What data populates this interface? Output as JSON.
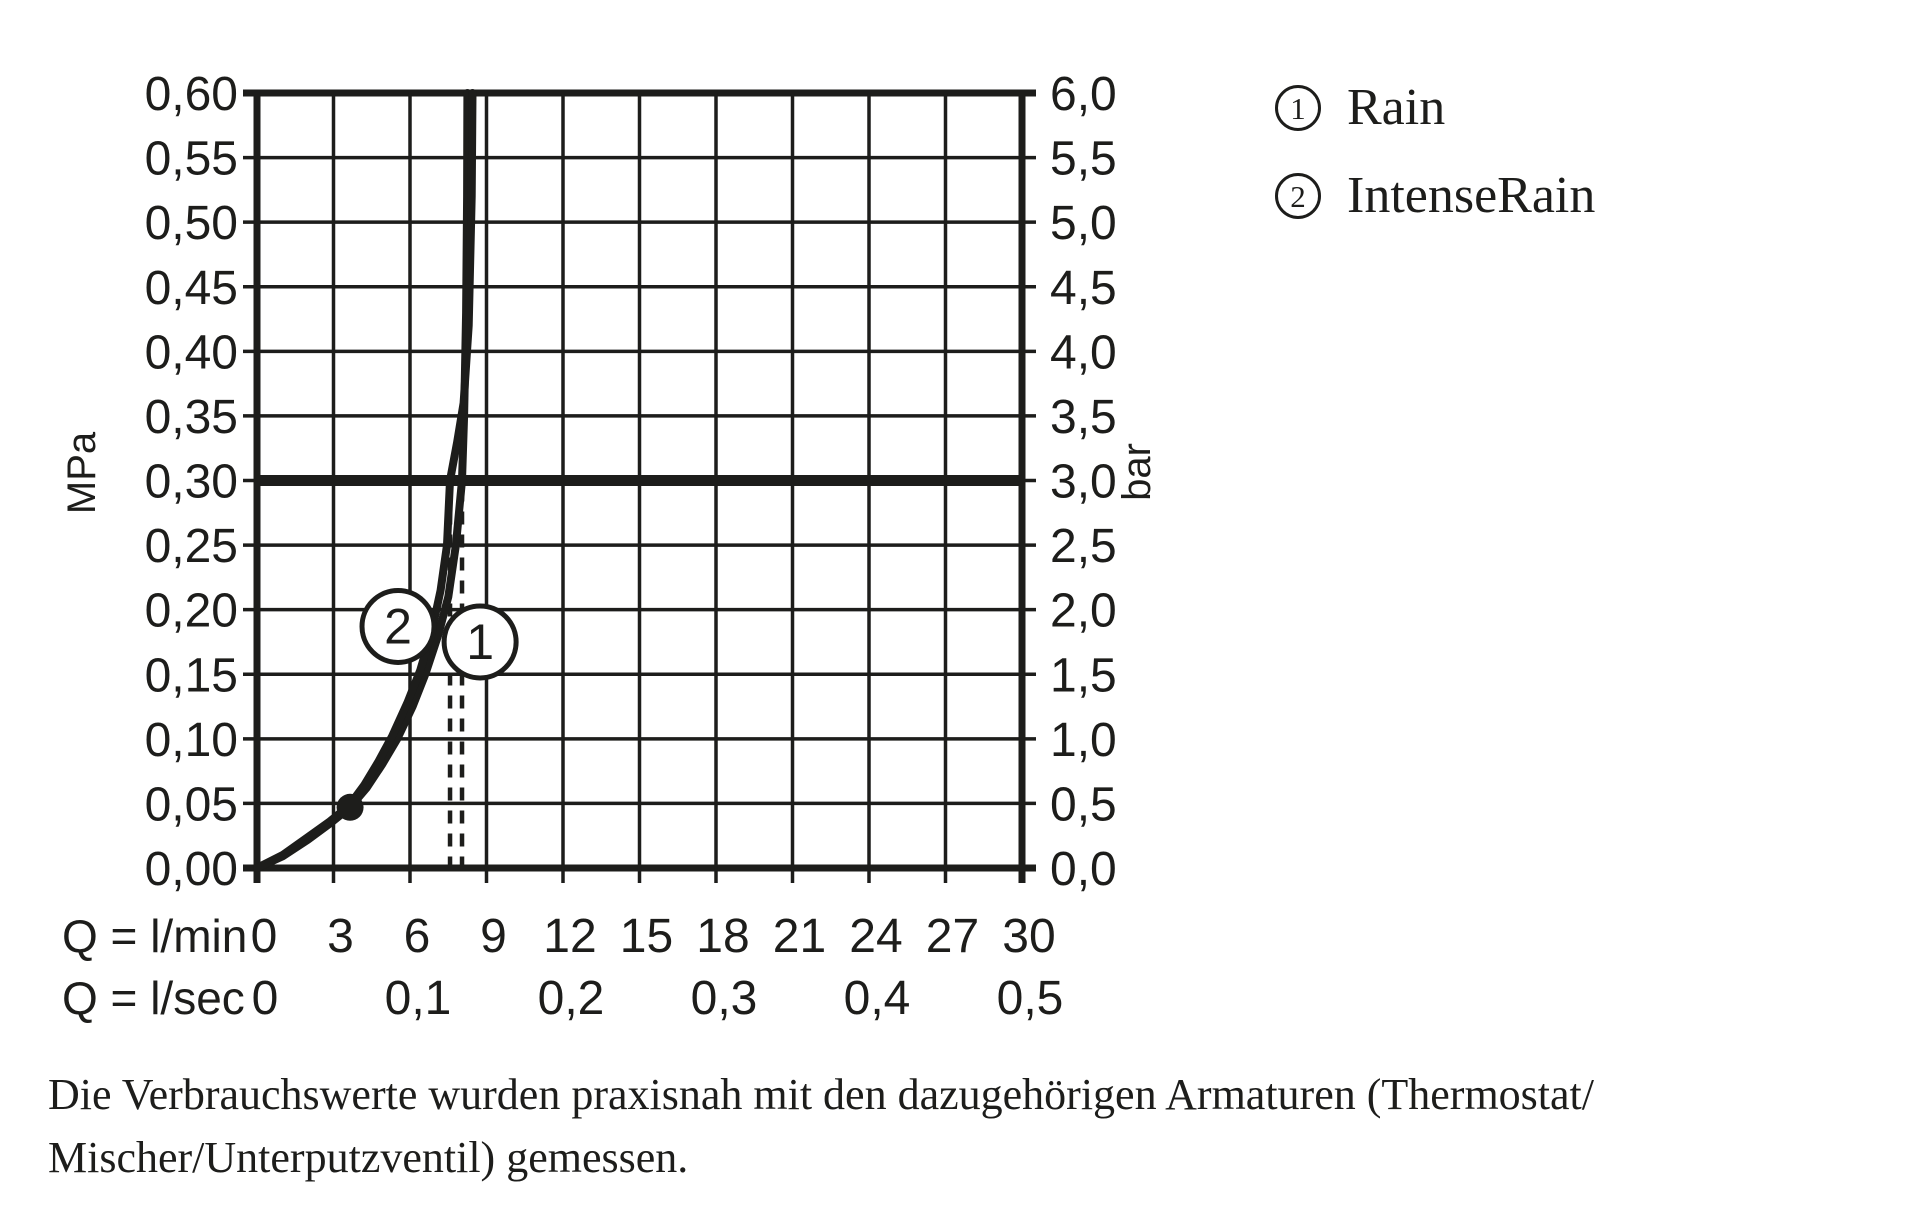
{
  "figure": {
    "background": "#ffffff",
    "line_color": "#1d1d1b"
  },
  "chart_data": {
    "type": "line",
    "title": "",
    "x_axis": {
      "primary_label": "Q = l/min",
      "secondary_label": "Q = l/sec",
      "min": 0,
      "max": 30,
      "step": 3,
      "primary_tick_labels": [
        "0",
        "3",
        "6",
        "9",
        "12",
        "15",
        "18",
        "21",
        "24",
        "27",
        "30"
      ],
      "secondary_ticks": [
        {
          "q": 0,
          "label": "0"
        },
        {
          "q": 6,
          "label": "0,1"
        },
        {
          "q": 12,
          "label": "0,2"
        },
        {
          "q": 18,
          "label": "0,3"
        },
        {
          "q": 24,
          "label": "0,4"
        },
        {
          "q": 30,
          "label": "0,5"
        }
      ]
    },
    "y_axis_left": {
      "label": "MPa",
      "min": 0,
      "max": 0.6,
      "step": 0.05,
      "tick_labels": [
        "0,60",
        "0,55",
        "0,50",
        "0,45",
        "0,40",
        "0,35",
        "0,30",
        "0,25",
        "0,20",
        "0,15",
        "0,10",
        "0,05",
        "0,00"
      ]
    },
    "y_axis_right": {
      "label": "bar",
      "min": 0,
      "max": 6,
      "step": 0.5,
      "tick_labels": [
        "6,0",
        "5,5",
        "5,0",
        "4,5",
        "4,0",
        "3,5",
        "3,0",
        "2,5",
        "2,0",
        "1,5",
        "1,0",
        "0,5",
        "0,0"
      ]
    },
    "grid": true,
    "reference_pressure_mpa": 0.3,
    "measured_point": {
      "q_lmin": 3.65,
      "p_mpa": 0.047
    },
    "series": [
      {
        "number": "1",
        "name": "Rain",
        "q_at_3bar_lmin": 8.04,
        "label_circle": {
          "q_lmin": 8.75,
          "p_mpa": 0.175
        },
        "points": [
          [
            0,
            0
          ],
          [
            1,
            0.009
          ],
          [
            2,
            0.022
          ],
          [
            2.9,
            0.035
          ],
          [
            3.65,
            0.047
          ],
          [
            4.3,
            0.062
          ],
          [
            4.9,
            0.08
          ],
          [
            5.5,
            0.1
          ],
          [
            6.1,
            0.125
          ],
          [
            6.6,
            0.15
          ],
          [
            7.1,
            0.18
          ],
          [
            7.5,
            0.21
          ],
          [
            7.8,
            0.25
          ],
          [
            8.04,
            0.3
          ],
          [
            8.12,
            0.35
          ],
          [
            8.2,
            0.43
          ],
          [
            8.24,
            0.52
          ],
          [
            8.25,
            0.6
          ]
        ]
      },
      {
        "number": "2",
        "name": "IntenseRain",
        "q_at_3bar_lmin": 7.57,
        "label_circle": {
          "q_lmin": 5.53,
          "p_mpa": 0.187
        },
        "points": [
          [
            0,
            0
          ],
          [
            1,
            0.01
          ],
          [
            2,
            0.024
          ],
          [
            2.85,
            0.036
          ],
          [
            3.6,
            0.048
          ],
          [
            4.2,
            0.064
          ],
          [
            4.75,
            0.082
          ],
          [
            5.3,
            0.102
          ],
          [
            5.9,
            0.128
          ],
          [
            6.4,
            0.153
          ],
          [
            6.85,
            0.183
          ],
          [
            7.2,
            0.215
          ],
          [
            7.45,
            0.25
          ],
          [
            7.57,
            0.3
          ],
          [
            7.85,
            0.33
          ],
          [
            8.1,
            0.36
          ],
          [
            8.3,
            0.42
          ],
          [
            8.42,
            0.52
          ],
          [
            8.45,
            0.6
          ]
        ]
      }
    ]
  },
  "legend": {
    "items": [
      {
        "number": "1",
        "label": "Rain"
      },
      {
        "number": "2",
        "label": "IntenseRain"
      }
    ]
  },
  "note": {
    "line1": "Die Verbrauchswerte wurden praxisnah mit den dazugehörigen Armaturen (Thermostat/",
    "line2": "Mischer/Unterputzventil) gemessen."
  }
}
